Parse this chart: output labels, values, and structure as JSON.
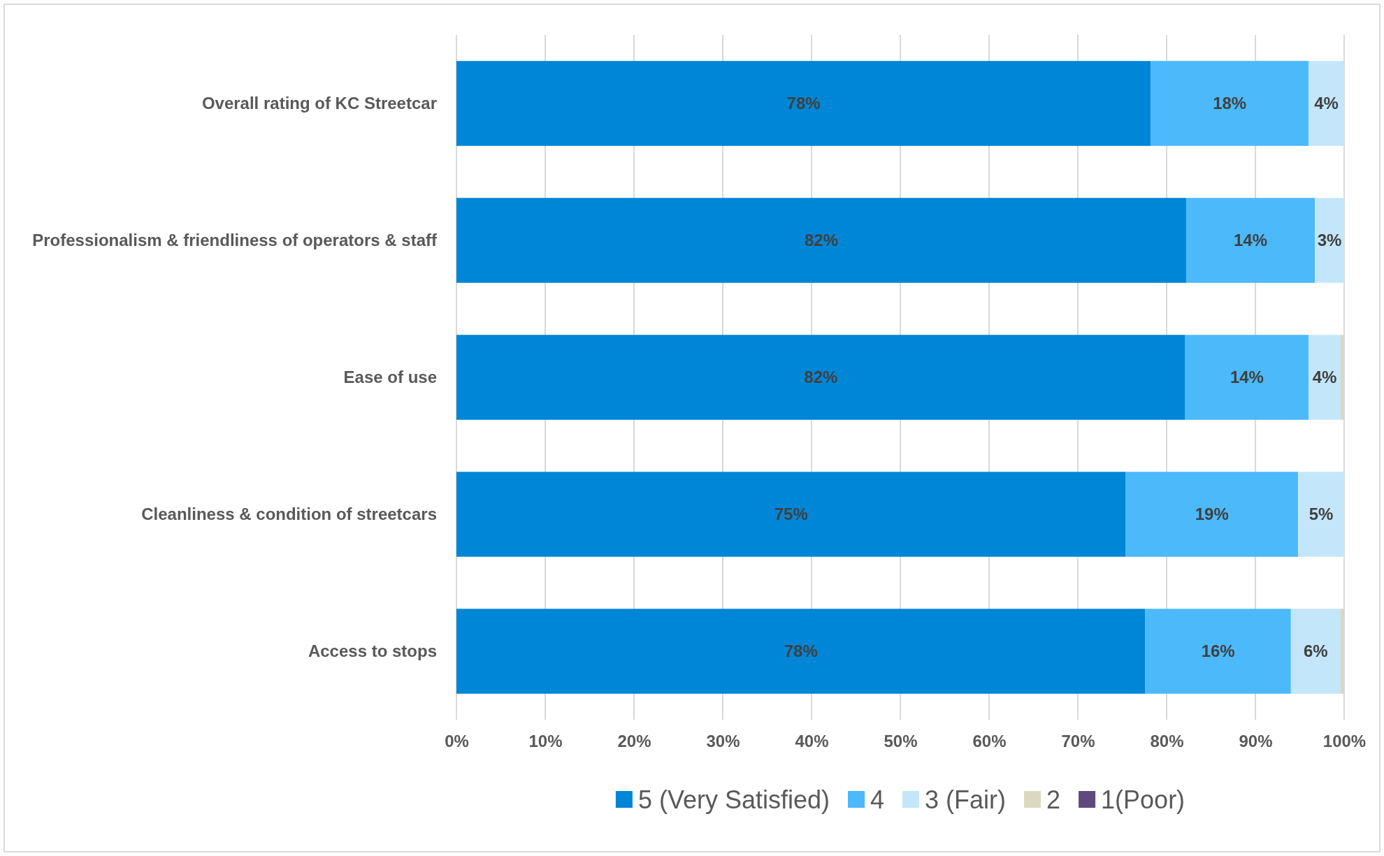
{
  "chart_data": {
    "type": "bar",
    "orientation": "horizontal",
    "stacked": true,
    "categories": [
      "Overall rating of KC Streetcar",
      "Professionalism & friendliness of operators & staff",
      "Ease of use",
      "Cleanliness & condition of streetcars",
      "Access to stops"
    ],
    "series": [
      {
        "name": "5 (Very Satisfied)",
        "color": "#0086d6",
        "values": [
          78.2,
          82.2,
          82.1,
          75.4,
          77.6
        ],
        "value_labels": [
          "78%",
          "82%",
          "82%",
          "75%",
          "78%"
        ]
      },
      {
        "name": "4",
        "color": "#4cb9fb",
        "values": [
          17.8,
          14.5,
          13.9,
          19.4,
          16.4
        ],
        "value_labels": [
          "18%",
          "14%",
          "14%",
          "19%",
          "16%"
        ]
      },
      {
        "name": "3 (Fair)",
        "color": "#c4e6fa",
        "values": [
          4,
          3.3,
          3.6,
          5.2,
          5.6
        ],
        "value_labels": [
          "4%",
          "3%",
          "4%",
          "5%",
          "6%"
        ]
      },
      {
        "name": "2",
        "color": "#dcd8c0",
        "values": [
          null,
          null,
          0.4,
          null,
          0.4
        ],
        "value_labels": [
          null,
          null,
          null,
          null,
          null
        ]
      },
      {
        "name": "1(Poor)",
        "color": "#5e4a7e",
        "values": [
          null,
          null,
          null,
          null,
          null
        ],
        "value_labels": [
          null,
          null,
          null,
          null,
          null
        ]
      }
    ],
    "xlim": [
      0,
      100
    ],
    "xticks": [
      {
        "value": 0,
        "label": "0%"
      },
      {
        "value": 10,
        "label": "10%"
      },
      {
        "value": 20,
        "label": "20%"
      },
      {
        "value": 30,
        "label": "30%"
      },
      {
        "value": 40,
        "label": "40%"
      },
      {
        "value": 50,
        "label": "50%"
      },
      {
        "value": 60,
        "label": "60%"
      },
      {
        "value": 70,
        "label": "70%"
      },
      {
        "value": 80,
        "label": "80%"
      },
      {
        "value": 90,
        "label": "90%"
      },
      {
        "value": 100,
        "label": "100%"
      }
    ],
    "grid": "x",
    "legend": "bottom"
  }
}
